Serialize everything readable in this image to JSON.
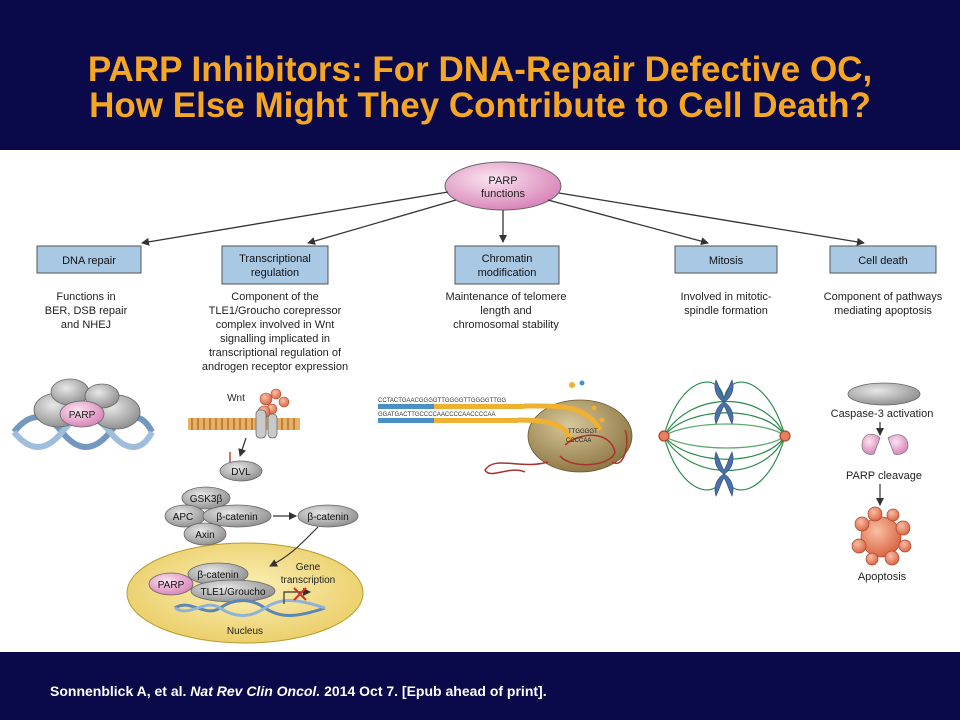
{
  "slide": {
    "title_line1": "PARP Inhibitors: For DNA-Repair Defective OC,",
    "title_line2": "How Else Might They Contribute to Cell Death?",
    "citation": {
      "authors": "Sonnenblick A, et al.",
      "journal": "Nat Rev Clin Oncol.",
      "details": "2014 Oct 7. [Epub ahead of print]."
    }
  },
  "colors": {
    "header_bg": "#0a0a4a",
    "title": "#f5a623",
    "category_box": "#a8c8e4",
    "parp_pink": "#e8a0cc",
    "nucleus": "#f5e08a",
    "caspase_grey": "#b8b8b8",
    "apoptosis_orange": "#e88060"
  },
  "diagram": {
    "center": [
      "PARP",
      "functions"
    ],
    "categories": [
      {
        "label": [
          "DNA repair"
        ],
        "description": [
          "Functions in",
          "BER, DSB repair",
          "and NHEJ"
        ]
      },
      {
        "label": [
          "Transcriptional",
          "regulation"
        ],
        "description": [
          "Component of the",
          "TLE1/Groucho corepressor",
          "complex involved in Wnt",
          "signalling implicated in",
          "transcriptional regulation of",
          "androgen receptor expression"
        ]
      },
      {
        "label": [
          "Chromatin",
          "modification"
        ],
        "description": [
          "Maintenance of telomere",
          "length and",
          "chromosomal stability"
        ]
      },
      {
        "label": [
          "Mitosis"
        ],
        "description": [
          "Involved in mitotic-",
          "spindle formation"
        ]
      },
      {
        "label": [
          "Cell death"
        ],
        "description": [
          "Component of pathways",
          "mediating apoptosis"
        ]
      }
    ],
    "dna_repair": {
      "parp_label": "PARP"
    },
    "wnt": {
      "wnt": "Wnt",
      "dvl": "DVL",
      "gsk3b": "GSK3β",
      "apc": "APC",
      "axin": "Axin",
      "beta_catenin": "β-catenin",
      "beta_catenin_free": "β-catenin",
      "parp": "PARP",
      "beta_catenin_nuclear": "β-catenin",
      "tle1": "TLE1/Groucho",
      "gene_transcription": [
        "Gene",
        "transcription"
      ],
      "nucleus": "Nucleus"
    },
    "telomere": {
      "seq_top": "CCTACTGAACGGGGTTGGGGTTGGGGTTGG",
      "seq_bottom": "GGATGACTTGCCCCAACCCCAACCCCAA",
      "seq_loop": "TTGGGGT",
      "seq_loop2": "CCCCAA"
    },
    "cell_death": {
      "caspase": "Caspase-3 activation",
      "parp_cleavage": "PARP  cleavage",
      "apoptosis": "Apoptosis"
    }
  }
}
